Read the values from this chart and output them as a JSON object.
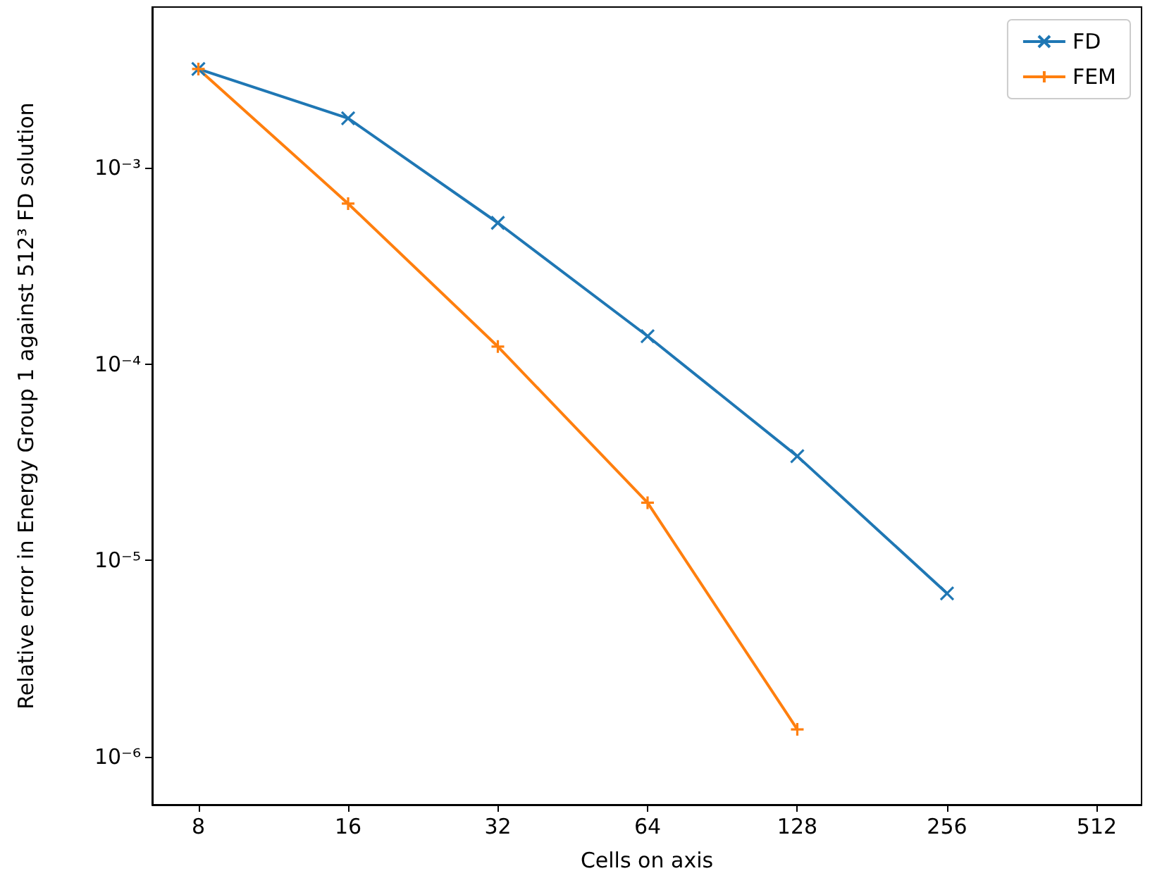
{
  "chart_data": {
    "type": "line",
    "xlabel": "Cells on axis",
    "ylabel": "Relative error in Energy Group 1 against 512³ FD solution",
    "log": "xy",
    "grid": false,
    "legend": "top right",
    "line_style": "solid",
    "xlim": [
      6.46,
      630
    ],
    "xticks": [
      8,
      16,
      32,
      64,
      128,
      256,
      512
    ],
    "ylim": [
      5.7e-07,
      0.0066
    ],
    "yticks": [
      {
        "value": 1e-06,
        "label": "10⁻⁶"
      },
      {
        "value": 1e-05,
        "label": "10⁻⁵"
      },
      {
        "value": 0.0001,
        "label": "10⁻⁴"
      },
      {
        "value": 0.001,
        "label": "10⁻³"
      }
    ],
    "series": [
      {
        "name": "FD",
        "color": "#1f77b4",
        "marker": "cross",
        "x": [
          8,
          16,
          32,
          64,
          128,
          256
        ],
        "values": [
          0.00319,
          0.00179,
          0.000525,
          0.000139,
          3.4e-05,
          6.8e-06
        ]
      },
      {
        "name": "FEM",
        "color": "#ff7f0e",
        "marker": "plus",
        "x": [
          8,
          16,
          32,
          64,
          128
        ],
        "values": [
          0.00319,
          0.000658,
          0.000123,
          1.97e-05,
          1.38e-06
        ]
      }
    ]
  }
}
